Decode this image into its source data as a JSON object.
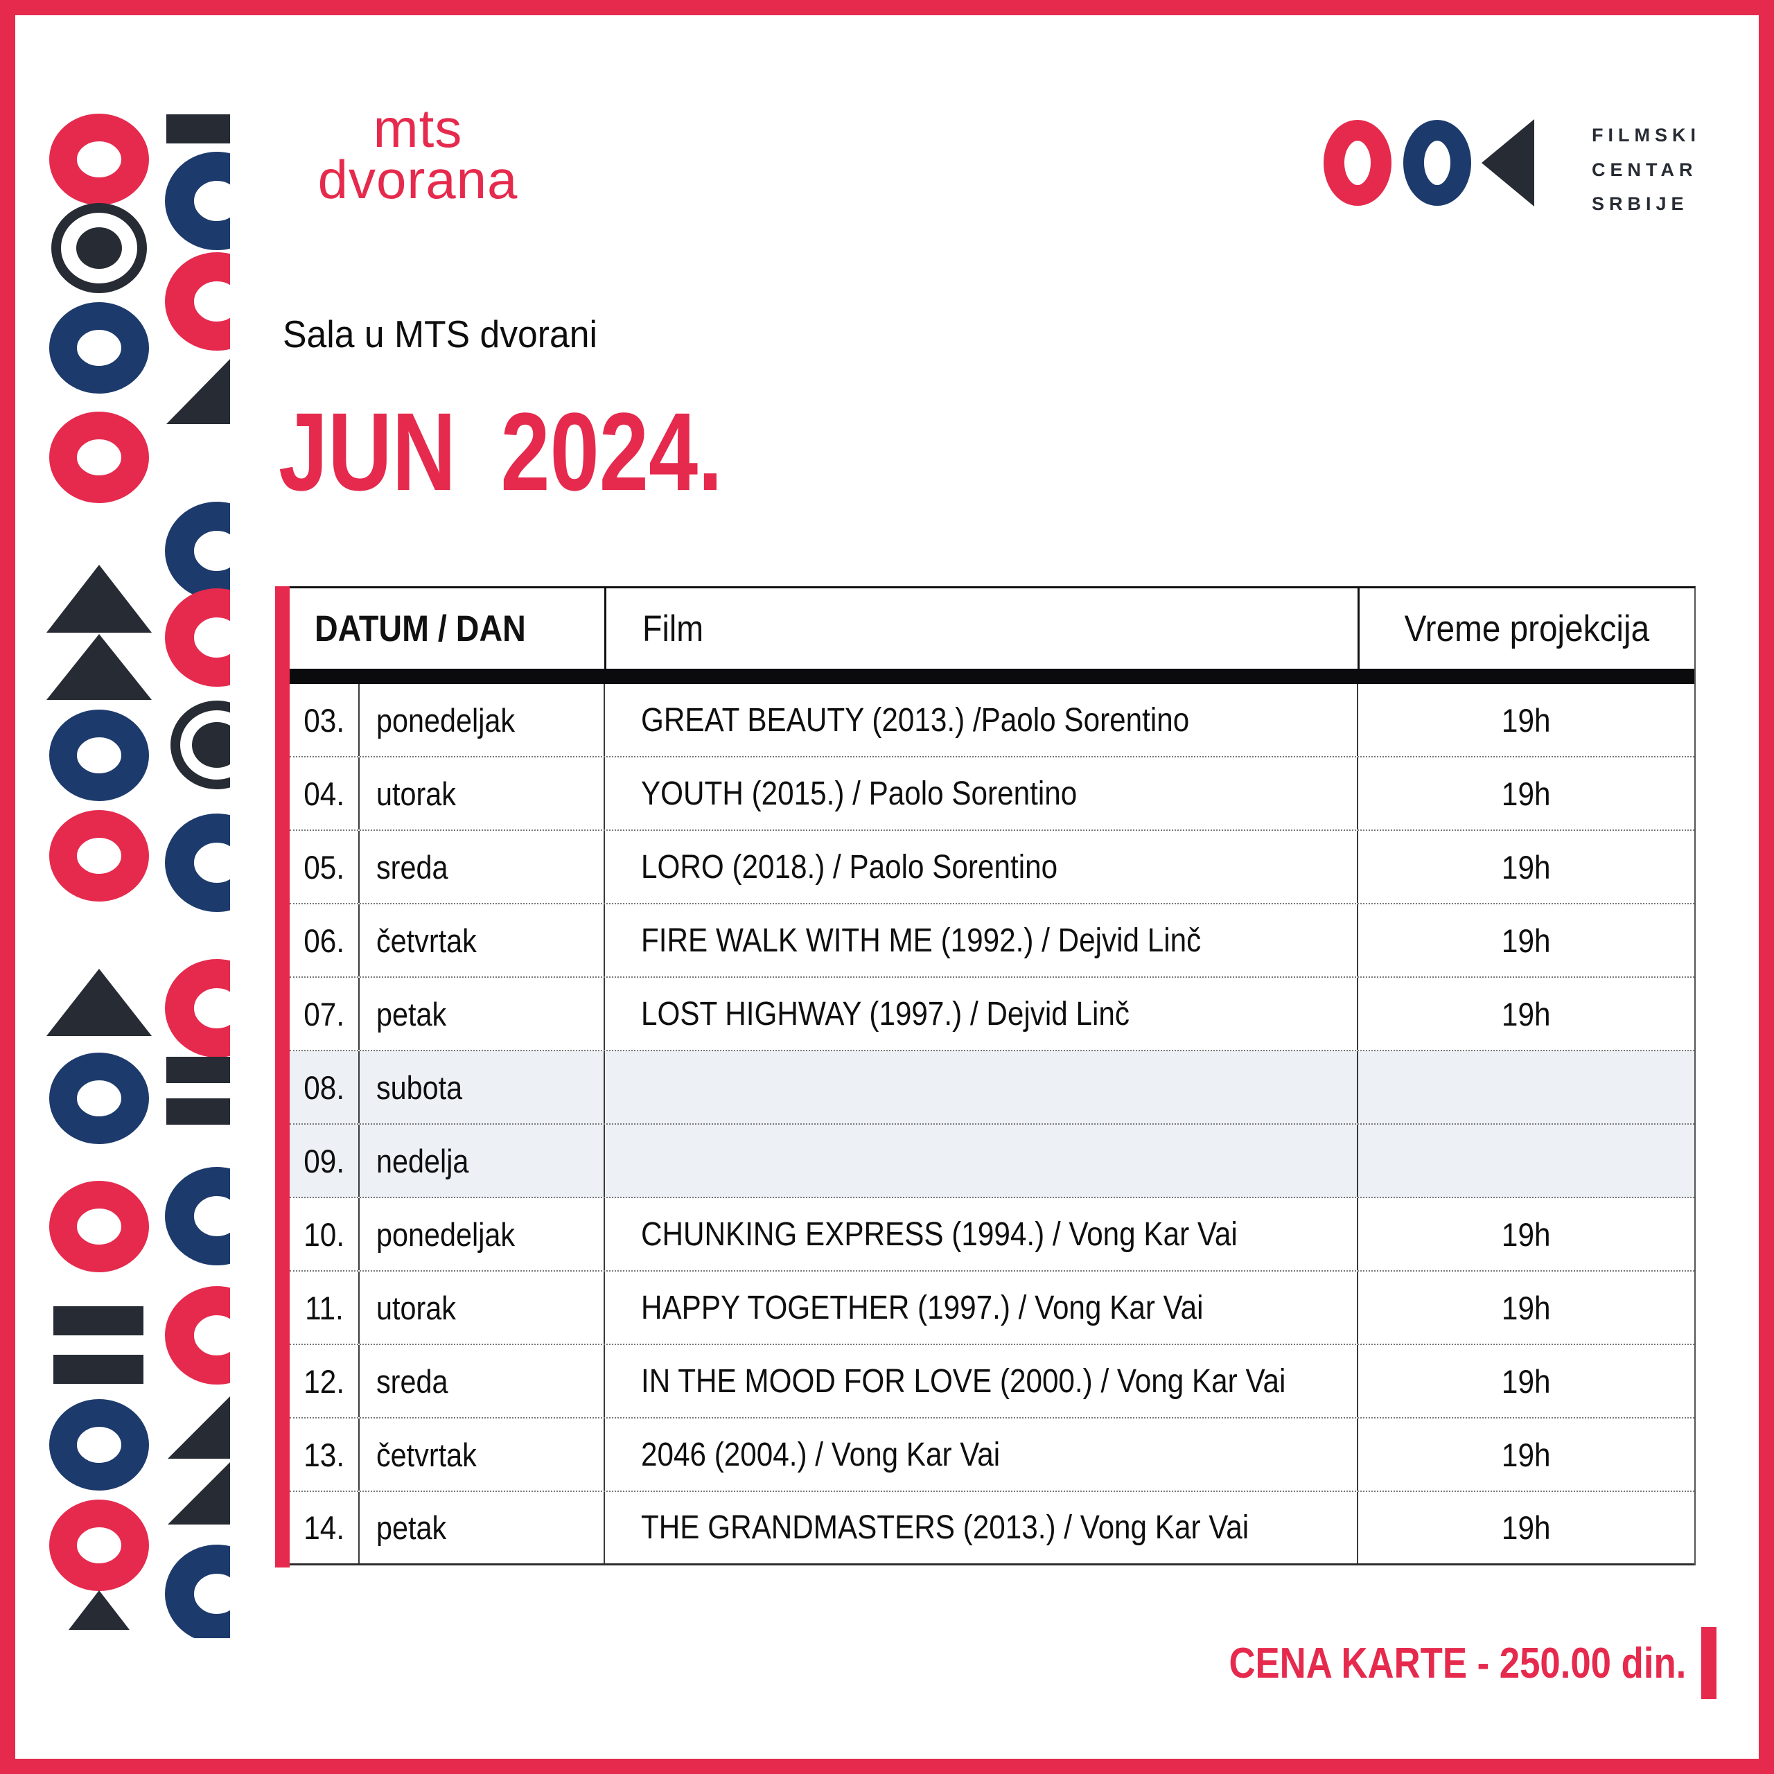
{
  "brand": {
    "line1": "mts",
    "line2": "dvorana"
  },
  "fcs": {
    "line1": "FILMSKI",
    "line2": "CENTAR",
    "line3": "SRBIJE"
  },
  "subtitle": "Sala u MTS dvorani",
  "title": "JUN 2024.",
  "table": {
    "headers": {
      "datum_dan": "DATUM / DAN",
      "film": "Film",
      "vreme": "Vreme projekcija"
    },
    "rows": [
      {
        "date": "03.",
        "day": "ponedeljak",
        "film": "GREAT BEAUTY (2013.) /Paolo Sorentino",
        "time": "19h",
        "weekend": false
      },
      {
        "date": "04.",
        "day": "utorak",
        "film": "YOUTH (2015.) / Paolo Sorentino",
        "time": "19h",
        "weekend": false
      },
      {
        "date": "05.",
        "day": "sreda",
        "film": "LORO (2018.) / Paolo Sorentino",
        "time": "19h",
        "weekend": false
      },
      {
        "date": "06.",
        "day": "četvrtak",
        "film": "FIRE WALK WITH ME (1992.) / Dejvid Linč",
        "time": "19h",
        "weekend": false
      },
      {
        "date": "07.",
        "day": "petak",
        "film": "LOST HIGHWAY (1997.) / Dejvid Linč",
        "time": "19h",
        "weekend": false
      },
      {
        "date": "08.",
        "day": "subota",
        "film": "",
        "time": "",
        "weekend": true
      },
      {
        "date": "09.",
        "day": "nedelja",
        "film": "",
        "time": "",
        "weekend": true
      },
      {
        "date": "10.",
        "day": "ponedeljak",
        "film": "CHUNKING EXPRESS (1994.) / Vong Kar Vai",
        "time": "19h",
        "weekend": false
      },
      {
        "date": "11.",
        "day": "utorak",
        "film": "HAPPY TOGETHER (1997.) / Vong Kar Vai",
        "time": "19h",
        "weekend": false
      },
      {
        "date": "12.",
        "day": "sreda",
        "film": "IN THE MOOD FOR LOVE (2000.) / Vong Kar Vai",
        "time": "19h",
        "weekend": false
      },
      {
        "date": "13.",
        "day": "četvrtak",
        "film": "2046 (2004.) / Vong Kar Vai",
        "time": "19h",
        "weekend": false
      },
      {
        "date": "14.",
        "day": "petak",
        "film": "THE GRANDMASTERS (2013.) / Vong Kar Vai",
        "time": "19h",
        "weekend": false
      }
    ]
  },
  "footer": {
    "price": "CENA KARTE - 250.00 din."
  },
  "colors": {
    "red": "#E52A4D",
    "navy": "#1D3A6C",
    "dark": "#272B33",
    "weekend_row_bg": "#EDF1F6"
  }
}
